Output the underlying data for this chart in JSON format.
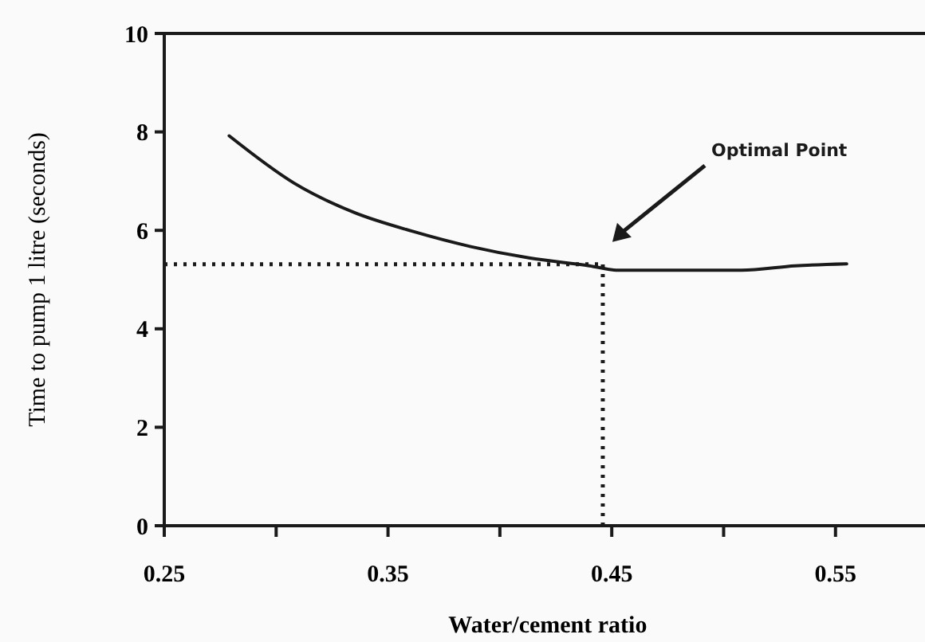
{
  "chart_data": {
    "type": "line",
    "xlabel": "Water/cement ratio",
    "ylabel": "Time to pump 1 litre (seconds)",
    "x": [
      0.279,
      0.308,
      0.335,
      0.361,
      0.387,
      0.413,
      0.44,
      0.453,
      0.479,
      0.508,
      0.532,
      0.555
    ],
    "series": [
      {
        "color": "#1a1a1a",
        "values": [
          7.92,
          6.96,
          6.36,
          5.98,
          5.67,
          5.44,
          5.28,
          5.19,
          5.19,
          5.19,
          5.28,
          5.32
        ]
      }
    ],
    "xlim": [
      0.25,
      0.59
    ],
    "xticks": [
      0.25,
      {
        "value": 0.3,
        "label": null
      },
      0.35,
      {
        "value": 0.4,
        "label": null
      },
      0.45,
      {
        "value": 0.5,
        "label": null
      },
      0.55
    ],
    "ylim": [
      0,
      10
    ],
    "yticks": [
      0,
      2,
      4,
      6,
      8,
      10
    ],
    "ref_lines": [
      {
        "axis": "y",
        "value": 5.31,
        "line_style": "dotted",
        "color": "#1a1a1a"
      },
      {
        "axis": "x",
        "value": 0.446,
        "line_style": "dotted",
        "color": "#1a1a1a"
      }
    ],
    "annotations": [
      "Optimal Point"
    ],
    "grid": false,
    "marker": "none",
    "line_style": "solid"
  }
}
